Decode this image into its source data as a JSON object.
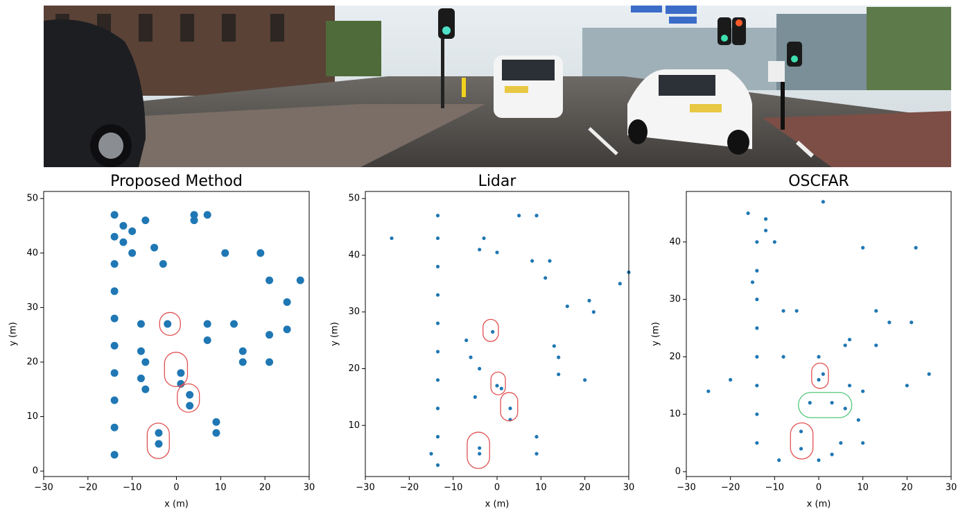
{
  "chart_data": [
    {
      "type": "scatter",
      "title": "Proposed Method",
      "x_label": "x (m)",
      "y_label": "y (m)",
      "color": "#1f77b4",
      "x": [
        -14,
        -14,
        -14,
        -14,
        -14,
        -14,
        -14,
        -14,
        -14,
        -14,
        -12,
        -12,
        -10,
        -10,
        -7,
        -5,
        -3,
        4,
        4,
        7,
        -8,
        -8,
        -8,
        -7,
        -7,
        -2,
        1,
        1,
        3,
        3,
        -4,
        -4,
        7,
        7,
        9,
        9,
        13,
        15,
        15,
        21,
        21,
        21,
        25,
        25,
        28,
        11,
        19
      ],
      "values": [
        3,
        8,
        13,
        18,
        23,
        28,
        33,
        38,
        43,
        47,
        42,
        45,
        44,
        40,
        46,
        41,
        38,
        47,
        46,
        47,
        27,
        22,
        17,
        20,
        15,
        27,
        18,
        16,
        14,
        12,
        5,
        7,
        27,
        24,
        9,
        7,
        27,
        22,
        20,
        35,
        25,
        20,
        31,
        26,
        35,
        40,
        40
      ],
      "xlim": [
        -30,
        30
      ],
      "ylim": [
        -1,
        51.3
      ],
      "xticks": [
        {
          "value": -30,
          "label": "−30"
        },
        {
          "value": -20,
          "label": "−20"
        },
        {
          "value": -10,
          "label": "−10"
        },
        0,
        10,
        20,
        30
      ],
      "yticks": [
        0,
        10,
        20,
        30,
        40,
        50
      ],
      "regions": [
        {
          "x": [
            -3.8,
            0.9
          ],
          "y": [
            24.9,
            29.1
          ],
          "color": "#e05050"
        },
        {
          "x": [
            -2.7,
            2.5
          ],
          "y": [
            15.5,
            21.8
          ],
          "color": "#e05050"
        },
        {
          "x": [
            0.2,
            5.2
          ],
          "y": [
            10.8,
            16
          ],
          "color": "#e05050"
        },
        {
          "x": [
            -6.6,
            -1.6
          ],
          "y": [
            2.3,
            8.8
          ],
          "color": "#e05050"
        }
      ]
    },
    {
      "type": "scatter",
      "title": "Lidar",
      "x_label": "x (m)",
      "y_label": "y (m)",
      "color": "#1f77b4",
      "x": [
        -13.5,
        -13.5,
        -13.5,
        -13.5,
        -13.5,
        -13.5,
        -13.5,
        -13.5,
        -13.5,
        -13.5,
        -24,
        -3,
        -4,
        0,
        5,
        9,
        8,
        12,
        11,
        21,
        22,
        28,
        30,
        -1,
        -7,
        -6,
        -4,
        0,
        1,
        3,
        3,
        -5,
        -4,
        -4,
        9,
        9,
        -15,
        16,
        13,
        14,
        14,
        20
      ],
      "values": [
        3,
        8,
        13,
        18,
        23,
        28,
        33,
        38,
        43,
        47,
        43,
        43,
        41,
        40.5,
        47,
        47,
        39,
        39,
        36,
        32,
        30,
        35,
        37,
        26.5,
        25,
        22,
        20,
        17,
        16.5,
        13,
        11,
        15,
        6,
        5,
        8,
        5,
        5,
        31,
        24,
        22,
        19,
        18
      ],
      "xlim": [
        -30,
        30
      ],
      "ylim": [
        0.98,
        51.25
      ],
      "xticks": [
        {
          "value": -30,
          "label": "−30"
        },
        {
          "value": -20,
          "label": "−20"
        },
        {
          "value": -10,
          "label": "−10"
        },
        0,
        10,
        20,
        30
      ],
      "yticks": [
        10,
        20,
        30,
        40,
        50
      ],
      "regions": [
        {
          "x": [
            -3.2,
            0.3
          ],
          "y": [
            24.8,
            28.7
          ],
          "color": "#e05050"
        },
        {
          "x": [
            -1.4,
            1.9
          ],
          "y": [
            15.4,
            19.4
          ],
          "color": "#e05050"
        },
        {
          "x": [
            0.8,
            4.7
          ],
          "y": [
            10.8,
            15.8
          ],
          "color": "#e05050"
        },
        {
          "x": [
            -6.8,
            -1.7
          ],
          "y": [
            2.4,
            8.8
          ],
          "color": "#e05050"
        }
      ]
    },
    {
      "type": "scatter",
      "title": "OSCFAR",
      "x_label": "x (m)",
      "y_label": "y (m)",
      "color": "#1f77b4",
      "x": [
        -14,
        -14,
        -14,
        -14,
        -14,
        -14,
        -14,
        -14,
        -16,
        -12,
        -12,
        -15,
        -10,
        -5,
        -8,
        10,
        22,
        1,
        0,
        -8,
        1,
        0,
        3,
        6,
        -2,
        7,
        10,
        9,
        13,
        16,
        21,
        13,
        20,
        25,
        -25,
        -20,
        -4,
        -4,
        -9,
        3,
        5,
        10,
        0,
        6,
        7
      ],
      "values": [
        5,
        10,
        15,
        20,
        25,
        30,
        35,
        40,
        45,
        44,
        42,
        33,
        40,
        28,
        28,
        39,
        39,
        47,
        20,
        20,
        17,
        16,
        12,
        11,
        12,
        15,
        14,
        9,
        28,
        26,
        26,
        22,
        15,
        17,
        14,
        16,
        7,
        4,
        2,
        3,
        5,
        5,
        2,
        22,
        23
      ],
      "xlim": [
        -30,
        30
      ],
      "ylim": [
        -0.85,
        48.8
      ],
      "xticks": [
        {
          "value": -30,
          "label": "−30"
        },
        {
          "value": -20,
          "label": "−20"
        },
        {
          "value": -10,
          "label": "−10"
        },
        0,
        10,
        20,
        30
      ],
      "yticks": [
        0,
        10,
        20,
        30,
        40
      ],
      "regions": [
        {
          "x": [
            -1.6,
            2.2
          ],
          "y": [
            14.5,
            18.9
          ],
          "color": "#e05050"
        },
        {
          "x": [
            -6.4,
            -1.3
          ],
          "y": [
            2.2,
            8.5
          ],
          "color": "#e05050"
        },
        {
          "x": [
            -4.6,
            7.5
          ],
          "y": [
            9.4,
            13.8
          ],
          "color": "#50c878"
        }
      ]
    }
  ]
}
